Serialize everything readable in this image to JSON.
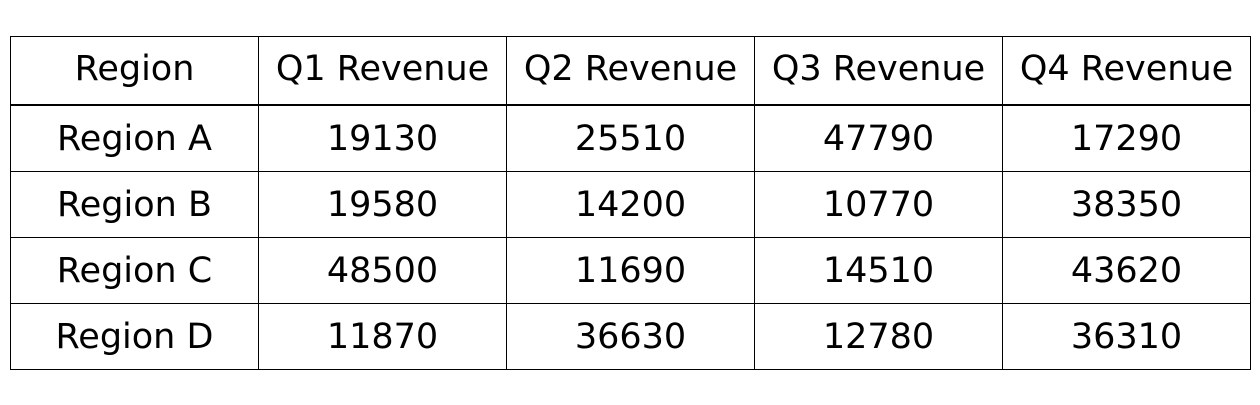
{
  "chart_data": {
    "type": "table",
    "columns": [
      "Region",
      "Q1 Revenue",
      "Q2 Revenue",
      "Q3 Revenue",
      "Q4 Revenue"
    ],
    "rows": [
      [
        "Region A",
        "19130",
        "25510",
        "47790",
        "17290"
      ],
      [
        "Region B",
        "19580",
        "14200",
        "10770",
        "38350"
      ],
      [
        "Region C",
        "48500",
        "11690",
        "14510",
        "43620"
      ],
      [
        "Region D",
        "11870",
        "36630",
        "12780",
        "36310"
      ]
    ]
  }
}
